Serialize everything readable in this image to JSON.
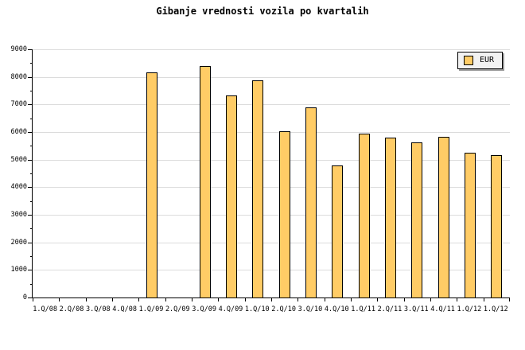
{
  "chart_data": {
    "type": "bar",
    "title": "Gibanje vrednosti vozila po kvartalih",
    "categories": [
      "1.Q/08",
      "2.Q/08",
      "3.Q/08",
      "4.Q/08",
      "1.Q/09",
      "2.Q/09",
      "3.Q/09",
      "4.Q/09",
      "1.Q/10",
      "2.Q/10",
      "3.Q/10",
      "4.Q/10",
      "1.Q/11",
      "2.Q/11",
      "3.Q/11",
      "4.Q/11",
      "1.Q/12",
      "1.Q/12"
    ],
    "series": [
      {
        "name": "EUR",
        "values": [
          null,
          null,
          null,
          null,
          8170,
          null,
          8400,
          7330,
          7890,
          6040,
          6900,
          4800,
          5950,
          5790,
          5630,
          5830,
          5240,
          5170
        ]
      }
    ],
    "xlabel": "",
    "ylabel": "",
    "ylim": [
      0,
      9000
    ],
    "ytick_interval": 1000,
    "yminor_interval": 500,
    "grid": true,
    "legend_position": "top-right",
    "colors": {
      "bar_fill": "#FFCC66",
      "bar_border": "#000000",
      "gridline": "#DCDCDC",
      "axis": "#000000",
      "background": "#FFFFFF",
      "legend_background": "#F2F2F2",
      "legend_shadow": "#999999"
    }
  }
}
